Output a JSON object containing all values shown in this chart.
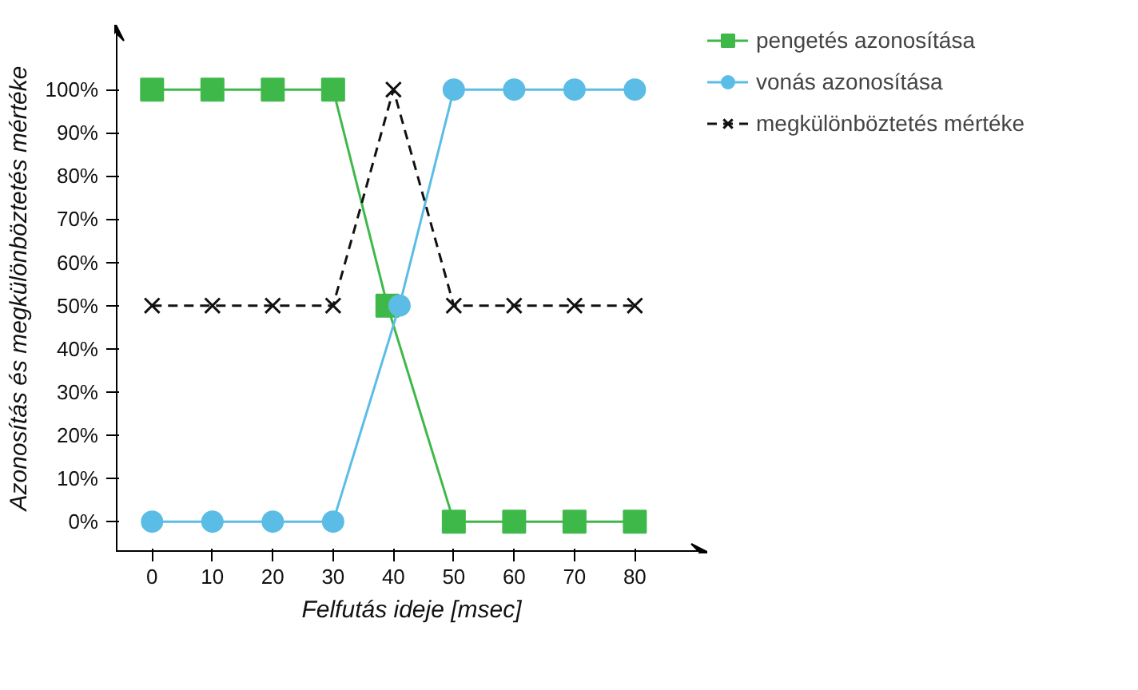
{
  "chart_data": {
    "type": "line",
    "xlabel": "Felfutás ideje [msec]",
    "ylabel": "Azonosítás és megkülönböztetés mértéke",
    "xlim": [
      -6,
      92
    ],
    "ylim": [
      -7,
      115
    ],
    "xticks": [
      0,
      10,
      20,
      30,
      40,
      50,
      60,
      70,
      80
    ],
    "yticks": [
      {
        "value": 0,
        "label": "0%"
      },
      {
        "value": 10,
        "label": "10%"
      },
      {
        "value": 20,
        "label": "20%"
      },
      {
        "value": 30,
        "label": "30%"
      },
      {
        "value": 40,
        "label": "40%"
      },
      {
        "value": 50,
        "label": "50%"
      },
      {
        "value": 60,
        "label": "60%"
      },
      {
        "value": 70,
        "label": "70%"
      },
      {
        "value": 80,
        "label": "80%"
      },
      {
        "value": 90,
        "label": "90%"
      },
      {
        "value": 100,
        "label": "100%"
      }
    ],
    "grid": false,
    "legend": "right",
    "series": [
      {
        "name": "pengetés azonosítása",
        "color": "#3fb84a",
        "marker": "square",
        "line_style": "solid",
        "x": [
          0,
          10,
          20,
          30,
          39,
          50,
          60,
          70,
          80
        ],
        "values": [
          100,
          100,
          100,
          100,
          50,
          0,
          0,
          0,
          0
        ]
      },
      {
        "name": "vonás azonosítása",
        "color": "#5bbde6",
        "marker": "circle",
        "line_style": "solid",
        "x": [
          0,
          10,
          20,
          30,
          41,
          50,
          60,
          70,
          80
        ],
        "values": [
          0,
          0,
          0,
          0,
          50,
          100,
          100,
          100,
          100
        ]
      },
      {
        "name": "megkülönböztetés mértéke",
        "color": "#111111",
        "marker": "cross",
        "line_style": "dashed",
        "x": [
          0,
          10,
          20,
          30,
          40,
          50,
          60,
          70,
          80
        ],
        "values": [
          50,
          50,
          50,
          50,
          100,
          50,
          50,
          50,
          50
        ]
      }
    ]
  }
}
